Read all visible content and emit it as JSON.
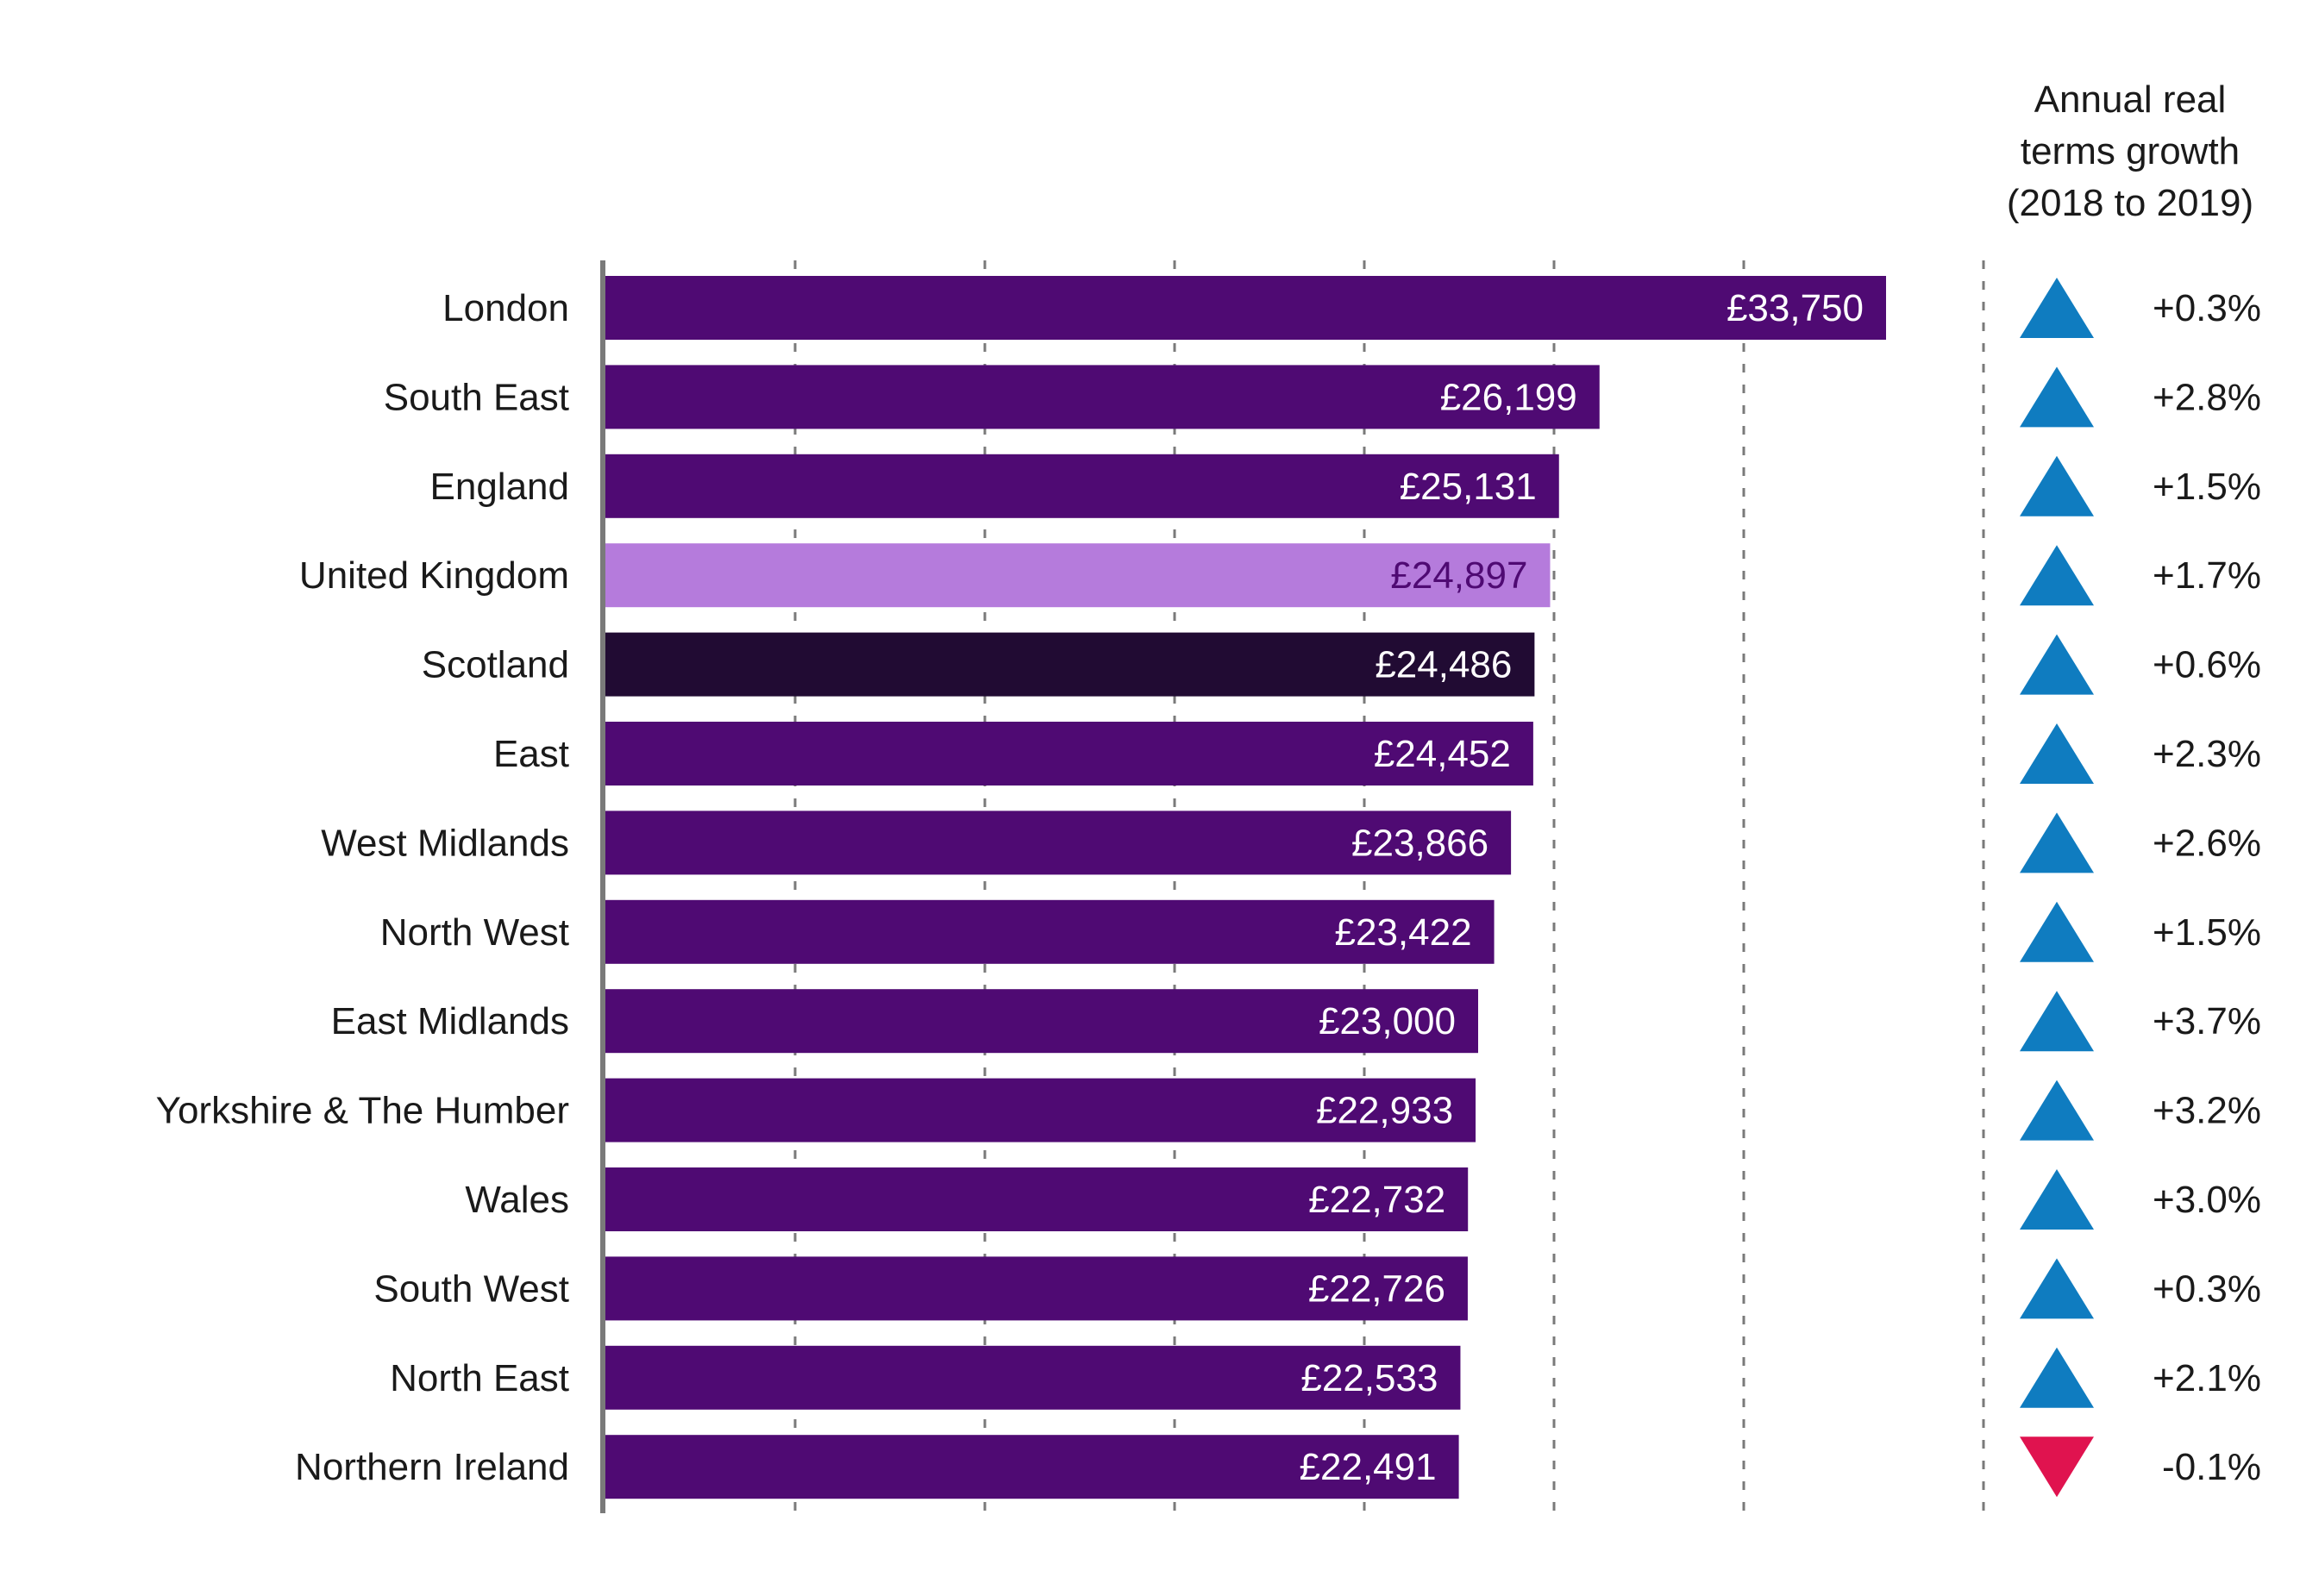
{
  "chart_data": {
    "type": "bar",
    "orientation": "horizontal",
    "title": "",
    "xlabel": "",
    "ylabel": "",
    "xlim": [
      0,
      35000
    ],
    "grid": "vertical dashed",
    "currency_prefix": "£",
    "categories": [
      "London",
      "South East",
      "England",
      "United Kingdom",
      "Scotland",
      "East",
      "West Midlands",
      "North West",
      "East Midlands",
      "Yorkshire & The Humber",
      "Wales",
      "South West",
      "North East",
      "Northern Ireland"
    ],
    "values": [
      33750,
      26199,
      25131,
      24897,
      24486,
      24452,
      23866,
      23422,
      23000,
      22933,
      22732,
      22726,
      22533,
      22491
    ],
    "value_labels": [
      "£33,750",
      "£26,199",
      "£25,131",
      "£24,897",
      "£24,486",
      "£24,452",
      "£23,866",
      "£23,422",
      "£23,000",
      "£22,933",
      "£22,732",
      "£22,726",
      "£22,533",
      "£22,491"
    ],
    "bar_colors": [
      "#4f0a73",
      "#4f0a73",
      "#4f0a73",
      "#b57bdc",
      "#210b33",
      "#4f0a73",
      "#4f0a73",
      "#4f0a73",
      "#4f0a73",
      "#4f0a73",
      "#4f0a73",
      "#4f0a73",
      "#4f0a73",
      "#4f0a73"
    ],
    "value_label_colors": [
      "#ffffff",
      "#ffffff",
      "#ffffff",
      "#4f0a73",
      "#ffffff",
      "#ffffff",
      "#ffffff",
      "#ffffff",
      "#ffffff",
      "#ffffff",
      "#ffffff",
      "#ffffff",
      "#ffffff",
      "#ffffff"
    ],
    "growth": {
      "header_lines": [
        "Annual real",
        "terms growth",
        "(2018 to 2019)"
      ],
      "values": [
        0.3,
        2.8,
        1.5,
        1.7,
        0.6,
        2.3,
        2.6,
        1.5,
        3.7,
        3.2,
        3.0,
        0.3,
        2.1,
        -0.1
      ],
      "labels": [
        "+0.3%",
        "+2.8%",
        "+1.5%",
        "+1.7%",
        "+0.6%",
        "+2.3%",
        "+2.6%",
        "+1.5%",
        "+3.7%",
        "+3.2%",
        "+3.0%",
        "+0.3%",
        "+2.1%",
        "-0.1%"
      ],
      "up_icon": "triangle-up-icon",
      "down_icon": "triangle-down-icon",
      "up_color": "#0f7cc0",
      "down_color": "#e0134f"
    }
  }
}
